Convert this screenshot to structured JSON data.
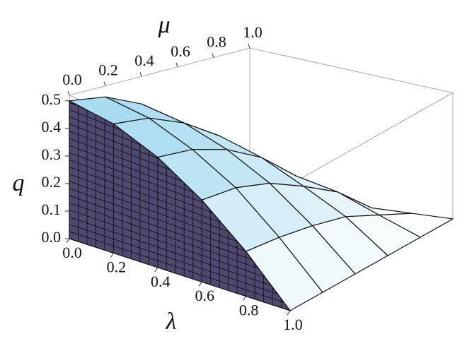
{
  "chart_data": {
    "type": "surface3d",
    "xlabel": "λ",
    "ylabel": "μ",
    "zlabel": "q",
    "lambda": [
      0,
      0.2,
      0.4,
      0.6,
      0.8,
      1
    ],
    "mu": [
      0,
      0.2,
      0.4,
      0.6,
      0.8,
      1
    ],
    "q": [
      [
        0.5,
        0.48,
        0.42,
        0.32,
        0.18,
        0
      ],
      [
        0.48,
        0.46,
        0.4,
        0.31,
        0.17,
        0
      ],
      [
        0.42,
        0.4,
        0.35,
        0.27,
        0.15,
        0
      ],
      [
        0.32,
        0.31,
        0.27,
        0.2,
        0.12,
        0
      ],
      [
        0.18,
        0.17,
        0.15,
        0.12,
        0.06,
        0
      ],
      [
        0,
        0,
        0,
        0,
        0,
        0
      ]
    ],
    "xlim": [
      0,
      1
    ],
    "ylim": [
      0,
      1
    ],
    "zlim": [
      0,
      0.52
    ],
    "xticks": [
      {
        "value": 0,
        "label": "0.0"
      },
      0.2,
      0.4,
      0.6,
      0.8,
      {
        "value": 1,
        "label": "1.0"
      }
    ],
    "yticks": [
      {
        "value": 0,
        "label": "0.0"
      },
      0.2,
      0.4,
      0.6,
      0.8,
      {
        "value": 1,
        "label": "1.0"
      }
    ],
    "zticks": [
      {
        "value": 0,
        "label": "0.0"
      },
      0.1,
      0.2,
      0.3,
      0.4,
      0.5
    ],
    "surface_color": "#a8dcf0",
    "front_color": "#4f4870"
  }
}
